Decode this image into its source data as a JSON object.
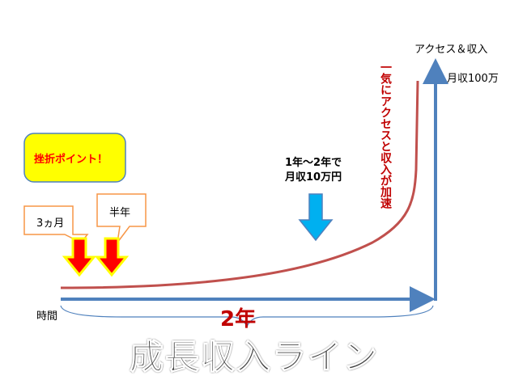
{
  "axis": {
    "y_label": "アクセス＆収入",
    "x_label": "時間"
  },
  "milestones": {
    "top": "月収100万",
    "middle_line1": "1年〜2年で",
    "middle_line2": "月収10万円"
  },
  "annotation": "一気にアクセスと収入が加速",
  "callout": {
    "title": "挫折ポイント！",
    "first": "3ヵ月",
    "second": "半年"
  },
  "span_label": "2年",
  "title": "成長収入ライン"
}
